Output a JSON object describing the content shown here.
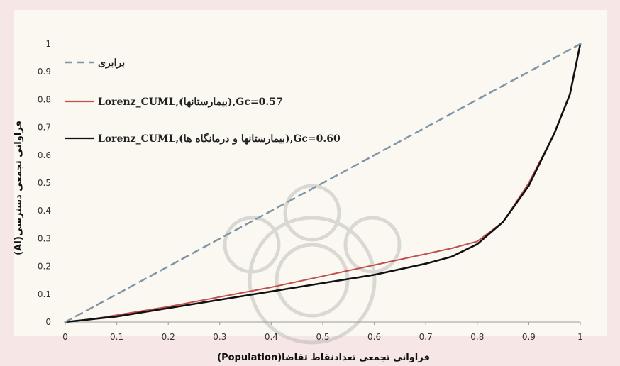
{
  "chart_data": {
    "type": "line",
    "xlabel": "فراوانی تجمعی تعدادنقاط تقاضا(Population)",
    "ylabel": "فراوانی تجمعی دسترسی(AI)",
    "xlim": [
      0,
      1
    ],
    "ylim": [
      0,
      1
    ],
    "x_ticks": [
      "0",
      "0.1",
      "0.2",
      "0.3",
      "0.4",
      "0.5",
      "0.6",
      "0.7",
      "0.8",
      "0.9",
      "1"
    ],
    "y_ticks": [
      "0",
      "0.1",
      "0.2",
      "0.3",
      "0.4",
      "0.5",
      "0.6",
      "0.7",
      "0.8",
      "0.9",
      "1"
    ],
    "grid": false,
    "legend_position": "top-left",
    "series": [
      {
        "name": "برابری",
        "color": "#7f96a8",
        "dash": "dashed",
        "points": [
          [
            0,
            0
          ],
          [
            1,
            1
          ]
        ]
      },
      {
        "name": "Lorenz_CUML,(بیمارستانها),Gc=0.57",
        "color": "#c0504d",
        "dash": "solid",
        "points": [
          [
            0,
            0
          ],
          [
            0.05,
            0.01
          ],
          [
            0.1,
            0.025
          ],
          [
            0.2,
            0.055
          ],
          [
            0.3,
            0.09
          ],
          [
            0.4,
            0.125
          ],
          [
            0.5,
            0.165
          ],
          [
            0.6,
            0.205
          ],
          [
            0.7,
            0.245
          ],
          [
            0.75,
            0.265
          ],
          [
            0.8,
            0.29
          ],
          [
            0.85,
            0.36
          ],
          [
            0.9,
            0.5
          ],
          [
            0.95,
            0.68
          ],
          [
            0.98,
            0.82
          ],
          [
            1,
            1
          ]
        ]
      },
      {
        "name": "Lorenz_CUML,(بیمارستانها و درمانگاه ها),Gc=0.60",
        "color": "#111111",
        "dash": "solid",
        "points": [
          [
            0,
            0
          ],
          [
            0.05,
            0.01
          ],
          [
            0.1,
            0.02
          ],
          [
            0.2,
            0.05
          ],
          [
            0.3,
            0.08
          ],
          [
            0.4,
            0.11
          ],
          [
            0.5,
            0.14
          ],
          [
            0.6,
            0.17
          ],
          [
            0.7,
            0.21
          ],
          [
            0.75,
            0.235
          ],
          [
            0.8,
            0.28
          ],
          [
            0.85,
            0.36
          ],
          [
            0.9,
            0.49
          ],
          [
            0.95,
            0.68
          ],
          [
            0.98,
            0.82
          ],
          [
            1,
            1
          ]
        ]
      }
    ]
  }
}
